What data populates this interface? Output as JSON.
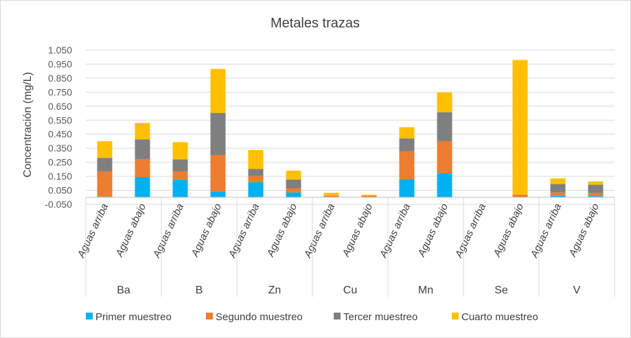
{
  "chart_data": {
    "type": "stacked-bar",
    "title": "Metales trazas",
    "ylabel": "Concentración (mg/L)",
    "xlabel": "",
    "ylim": [
      -0.05,
      1.05
    ],
    "yticks": [
      -0.05,
      0.05,
      0.15,
      0.25,
      0.35,
      0.45,
      0.55,
      0.65,
      0.75,
      0.85,
      0.95,
      1.05
    ],
    "ytick_labels": [
      "-0.050",
      "0.050",
      "0.150",
      "0.250",
      "0.350",
      "0.450",
      "0.550",
      "0.650",
      "0.750",
      "0.850",
      "0.950",
      "1.050"
    ],
    "gridlines": true,
    "legend_position": "bottom",
    "groups": [
      "Ba",
      "B",
      "Zn",
      "Cu",
      "Mn",
      "Se",
      "V"
    ],
    "categories": [
      "Aguas arriba",
      "Aguas abajo",
      "Aguas arriba",
      "Aguas abajo",
      "Aguas arriba",
      "Aguas abajo",
      "Aguas arriba",
      "Aguas abajo",
      "Aguas arriba",
      "Aguas abajo",
      "Aguas arriba",
      "Aguas abajo",
      "Aguas arriba",
      "Aguas abajo"
    ],
    "series": [
      {
        "name": "Primer muestreo",
        "color": "#00B0F0",
        "values": [
          0.005,
          0.143,
          0.125,
          0.04,
          0.107,
          0.035,
          0.002,
          0.0,
          0.13,
          0.17,
          0.0,
          0.0,
          0.01,
          0.008
        ]
      },
      {
        "name": "Segundo muestreo",
        "color": "#ED7D31",
        "values": [
          0.18,
          0.13,
          0.06,
          0.262,
          0.045,
          0.03,
          0.008,
          0.01,
          0.197,
          0.23,
          0.0,
          0.02,
          0.025,
          0.022
        ]
      },
      {
        "name": "Tercer muestreo",
        "color": "#7F7F7F",
        "values": [
          0.095,
          0.14,
          0.085,
          0.3,
          0.05,
          0.062,
          0.002,
          0.001,
          0.093,
          0.207,
          0.0,
          0.0,
          0.06,
          0.06
        ]
      },
      {
        "name": "Cuarto muestreo",
        "color": "#FFC000",
        "values": [
          0.12,
          0.117,
          0.123,
          0.313,
          0.135,
          0.063,
          0.02,
          0.007,
          0.08,
          0.141,
          0.0,
          0.959,
          0.04,
          0.024
        ]
      }
    ]
  }
}
